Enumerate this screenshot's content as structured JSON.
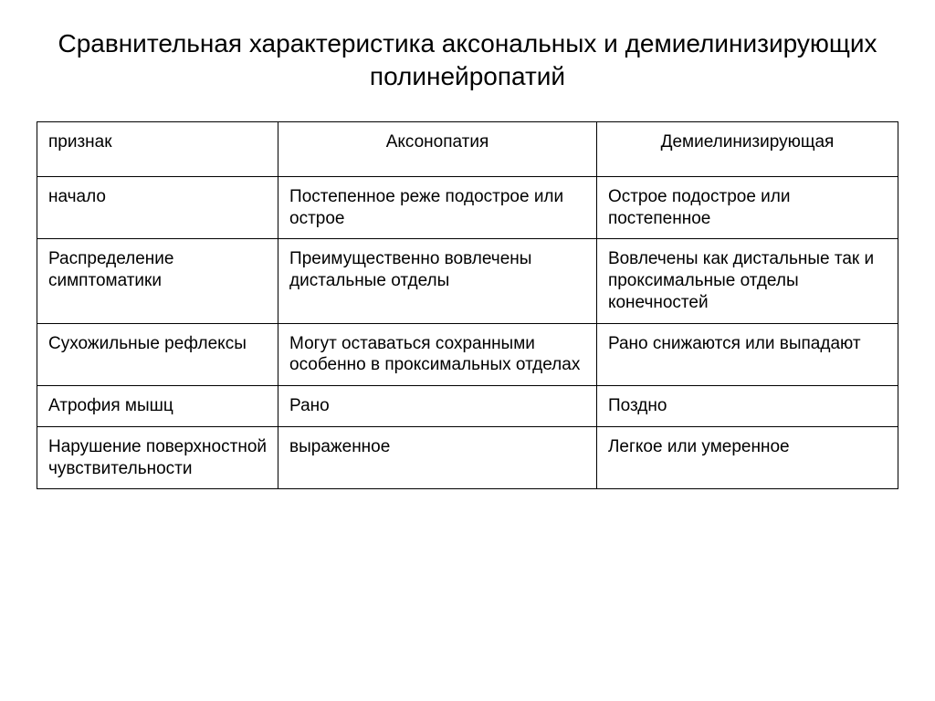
{
  "title": "Сравнительная характеристика аксональных и демиелинизирующих полинейропатий",
  "table": {
    "type": "table",
    "background_color": "#ffffff",
    "border_color": "#000000",
    "text_color": "#000000",
    "title_fontsize": 28,
    "cell_fontsize": 19,
    "columns": [
      {
        "key": "sign",
        "width_pct": 28,
        "align": "left"
      },
      {
        "key": "axonopathy",
        "width_pct": 37,
        "align": "left"
      },
      {
        "key": "demyelinating",
        "width_pct": 35,
        "align": "left"
      }
    ],
    "header": {
      "sign": "признак",
      "axonopathy": "Аксонопатия",
      "demyelinating": "Демиелинизирующая"
    },
    "rows": [
      {
        "sign": "начало",
        "axonopathy": "Постепенное реже подострое или острое",
        "demyelinating": "Острое подострое или постепенное"
      },
      {
        "sign": "Распределение симптоматики",
        "axonopathy": "Преимущественно вовлечены дистальные отделы",
        "demyelinating": "Вовлечены как дистальные так и проксимальные отделы конечностей"
      },
      {
        "sign": "Сухожильные рефлексы",
        "axonopathy": "Могут оставаться сохранными особенно в проксимальных отделах",
        "demyelinating": "Рано снижаются или выпадают"
      },
      {
        "sign": "Атрофия мышц",
        "axonopathy": "Рано",
        "demyelinating": "Поздно"
      },
      {
        "sign": "Нарушение поверхностной чувствительности",
        "axonopathy": "выраженное",
        "demyelinating": "Легкое или умеренное"
      }
    ]
  }
}
